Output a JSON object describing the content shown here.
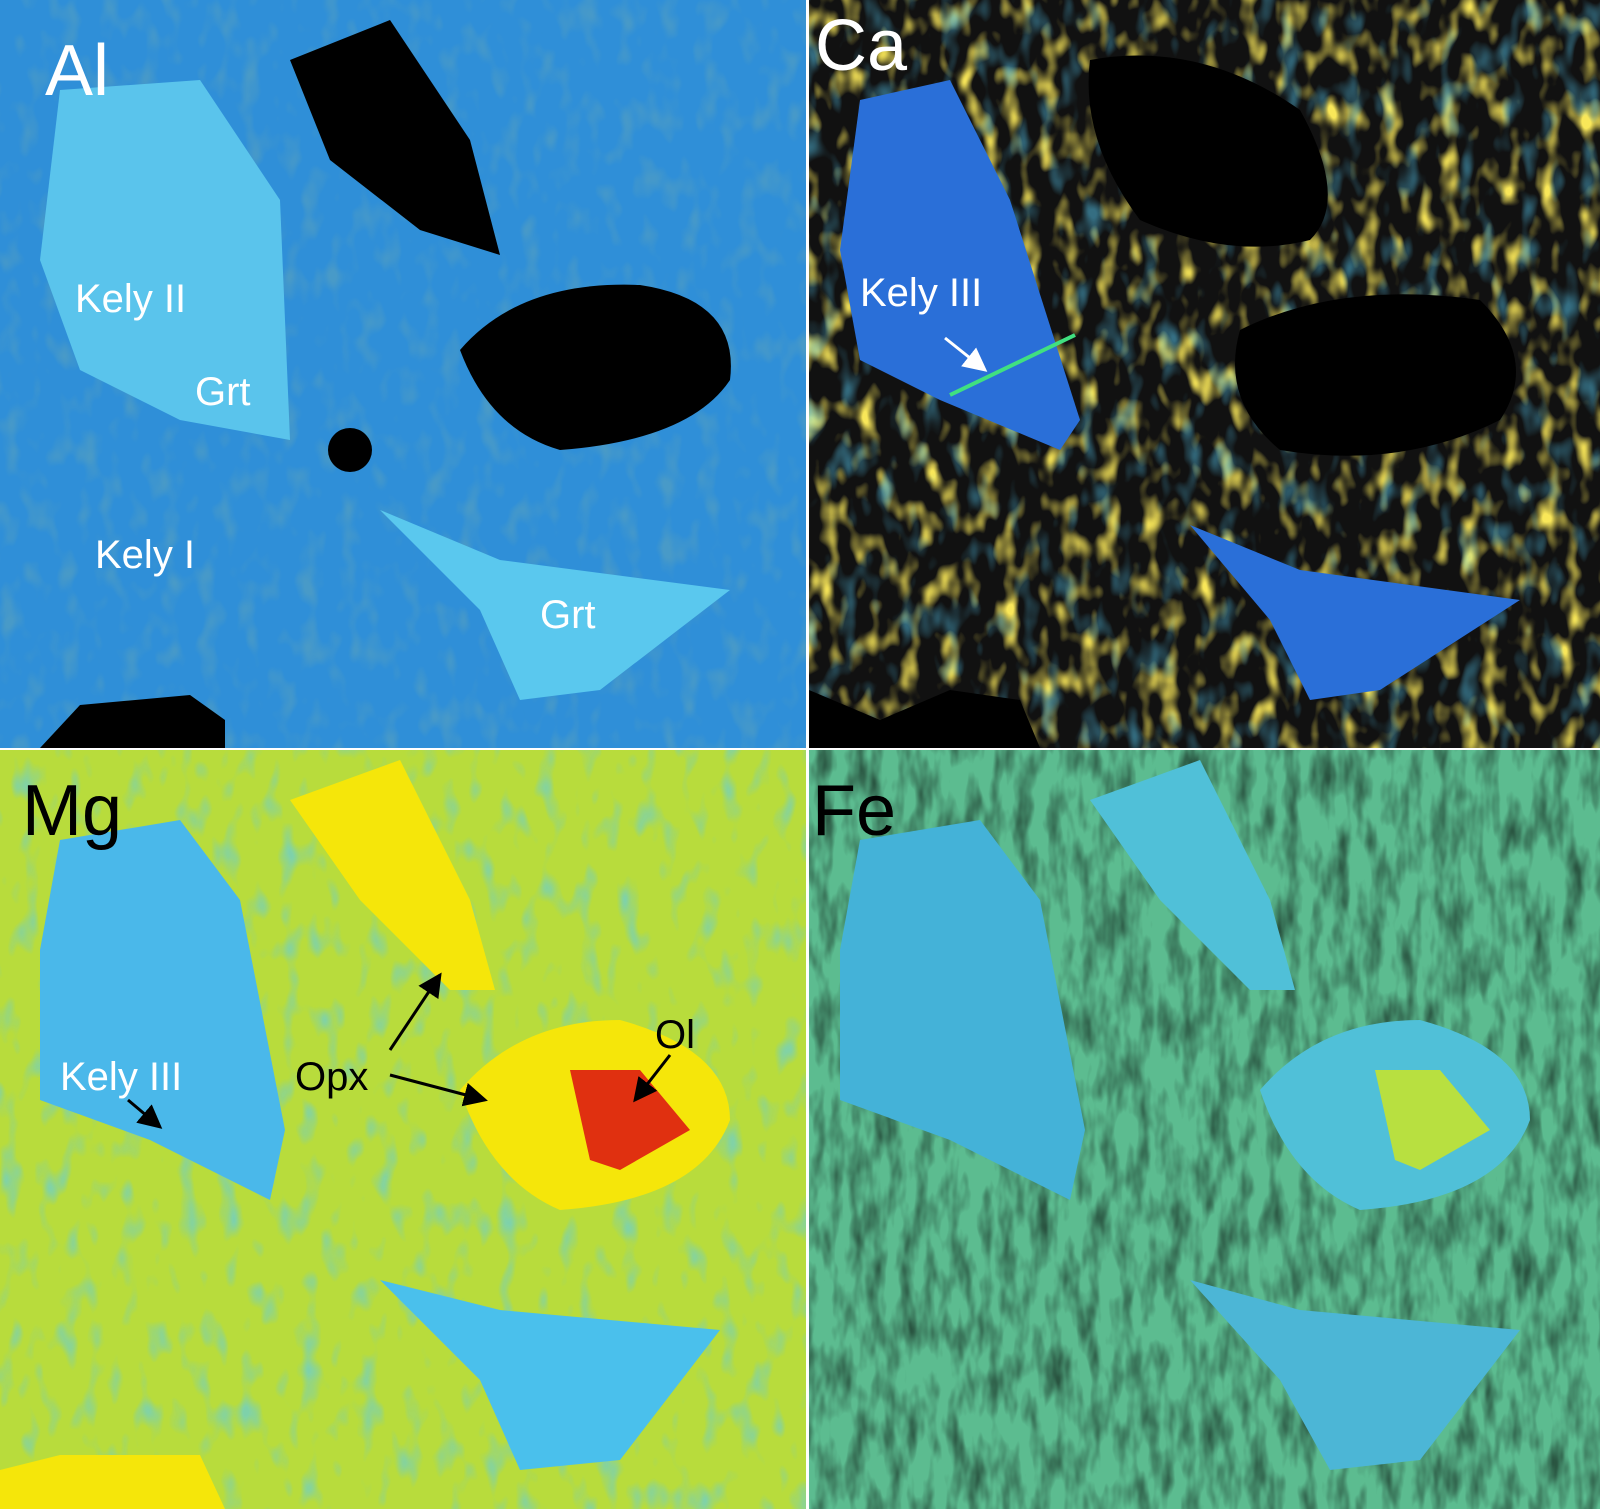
{
  "panels": [
    {
      "element": "Al",
      "labels": [
        "Kely II",
        "Grt",
        "Kely I",
        "Grt"
      ]
    },
    {
      "element": "Ca",
      "labels": [
        "Kely III"
      ]
    },
    {
      "element": "Mg",
      "labels": [
        "Kely III",
        "Opx",
        "Ol"
      ]
    },
    {
      "element": "Fe",
      "labels": []
    }
  ]
}
